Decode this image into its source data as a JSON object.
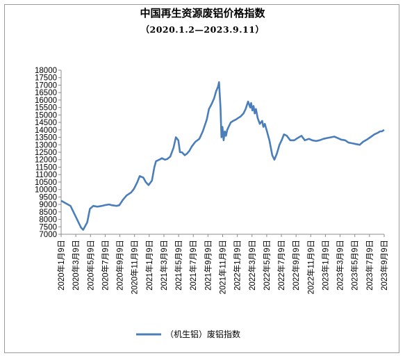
{
  "chart_data": {
    "type": "line",
    "title": "中国再生资源废铝价格指数",
    "subtitle": "（2020.1.2—2023.9.11）",
    "ylim": [
      7000,
      18000
    ],
    "y_ticks": [
      "18000",
      "17500",
      "17000",
      "16500",
      "16000",
      "15500",
      "15000",
      "14500",
      "14000",
      "13500",
      "13000",
      "12500",
      "12000",
      "11500",
      "11000",
      "10500",
      "10000",
      "9500",
      "9000",
      "8500",
      "8000",
      "7500",
      "7000"
    ],
    "x_ticks": [
      "2020年1月9日",
      "2020年3月9日",
      "2020年5月9日",
      "2020年7月9日",
      "2020年9月9日",
      "2020年11月9日",
      "2021年1月9日",
      "2021年3月9日",
      "2021年5月9日",
      "2021年7月9日",
      "2021年9月9日",
      "2021年11月9日",
      "2022年1月9日",
      "2022年3月9日",
      "2022年5月9日",
      "2022年7月9日",
      "2022年9月9日",
      "2022年11月9日",
      "2023年1月9日",
      "2023年3月9日",
      "2023年5月9日",
      "2023年7月9日",
      "2023年9月9日"
    ],
    "grid": false,
    "legend_position": "bottom",
    "series": [
      {
        "name": "（机生铝）废铝指数",
        "color": "#4a7ebb",
        "x": [
          "2020-01-02",
          "2020-02-10",
          "2020-03-25",
          "2020-04-03",
          "2020-04-20",
          "2020-05-01",
          "2020-05-15",
          "2020-06-01",
          "2020-06-20",
          "2020-07-01",
          "2020-07-20",
          "2020-08-01",
          "2020-08-20",
          "2020-09-01",
          "2020-09-15",
          "2020-10-01",
          "2020-10-20",
          "2020-11-01",
          "2020-11-15",
          "2020-11-25",
          "2020-12-10",
          "2020-12-20",
          "2021-01-01",
          "2021-01-15",
          "2021-01-25",
          "2021-02-01",
          "2021-02-15",
          "2021-02-25",
          "2021-03-10",
          "2021-03-20",
          "2021-04-01",
          "2021-04-15",
          "2021-04-25",
          "2021-05-05",
          "2021-05-12",
          "2021-05-20",
          "2021-06-01",
          "2021-06-10",
          "2021-06-20",
          "2021-07-01",
          "2021-07-15",
          "2021-08-01",
          "2021-08-15",
          "2021-09-01",
          "2021-09-10",
          "2021-09-20",
          "2021-10-01",
          "2021-10-10",
          "2021-10-18",
          "2021-10-22",
          "2021-10-28",
          "2021-11-01",
          "2021-11-05",
          "2021-11-10",
          "2021-11-15",
          "2021-11-20",
          "2021-11-25",
          "2021-12-01",
          "2021-12-10",
          "2021-12-20",
          "2022-01-01",
          "2022-01-10",
          "2022-01-20",
          "2022-02-01",
          "2022-02-10",
          "2022-02-20",
          "2022-03-01",
          "2022-03-05",
          "2022-03-10",
          "2022-03-15",
          "2022-03-20",
          "2022-03-25",
          "2022-04-01",
          "2022-04-10",
          "2022-04-20",
          "2022-04-25",
          "2022-05-01",
          "2022-05-10",
          "2022-05-20",
          "2022-06-01",
          "2022-06-10",
          "2022-06-20",
          "2022-07-01",
          "2022-07-10",
          "2022-07-15",
          "2022-07-20",
          "2022-08-01",
          "2022-08-15",
          "2022-09-01",
          "2022-09-10",
          "2022-09-20",
          "2022-10-01",
          "2022-10-15",
          "2022-11-01",
          "2022-11-15",
          "2022-12-01",
          "2022-12-15",
          "2023-01-01",
          "2023-01-15",
          "2023-02-01",
          "2023-02-15",
          "2023-03-01",
          "2023-03-15",
          "2023-04-01",
          "2023-04-15",
          "2023-05-01",
          "2023-05-15",
          "2023-06-01",
          "2023-06-15",
          "2023-07-01",
          "2023-07-15",
          "2023-08-01",
          "2023-08-15",
          "2023-08-25",
          "2023-09-01",
          "2023-09-11"
        ],
        "values": [
          9250,
          8900,
          7450,
          7300,
          7800,
          8700,
          8900,
          8850,
          8900,
          8950,
          9000,
          8950,
          8900,
          8950,
          9300,
          9600,
          9800,
          10050,
          10500,
          10900,
          10800,
          10500,
          10300,
          10600,
          11500,
          11900,
          12000,
          12100,
          12000,
          12050,
          12200,
          12800,
          13500,
          13300,
          12500,
          12500,
          12300,
          12400,
          12600,
          12900,
          13200,
          13400,
          13900,
          14700,
          15400,
          15700,
          16100,
          16600,
          16900,
          17200,
          15500,
          13500,
          14200,
          13300,
          13900,
          13600,
          14000,
          14200,
          14500,
          14600,
          14700,
          14800,
          14900,
          15100,
          15400,
          15900,
          15500,
          15800,
          15300,
          15600,
          15100,
          15400,
          14800,
          14400,
          14600,
          14200,
          14400,
          13900,
          13300,
          12300,
          12000,
          12400,
          13000,
          13300,
          13500,
          13700,
          13600,
          13300,
          13300,
          13400,
          13500,
          13600,
          13300,
          13400,
          13300,
          13250,
          13300,
          13400,
          13450,
          13500,
          13550,
          13450,
          13350,
          13300,
          13150,
          13100,
          13050,
          13000,
          13200,
          13350,
          13500,
          13700,
          13800,
          13900,
          13900,
          14000
        ]
      }
    ]
  }
}
